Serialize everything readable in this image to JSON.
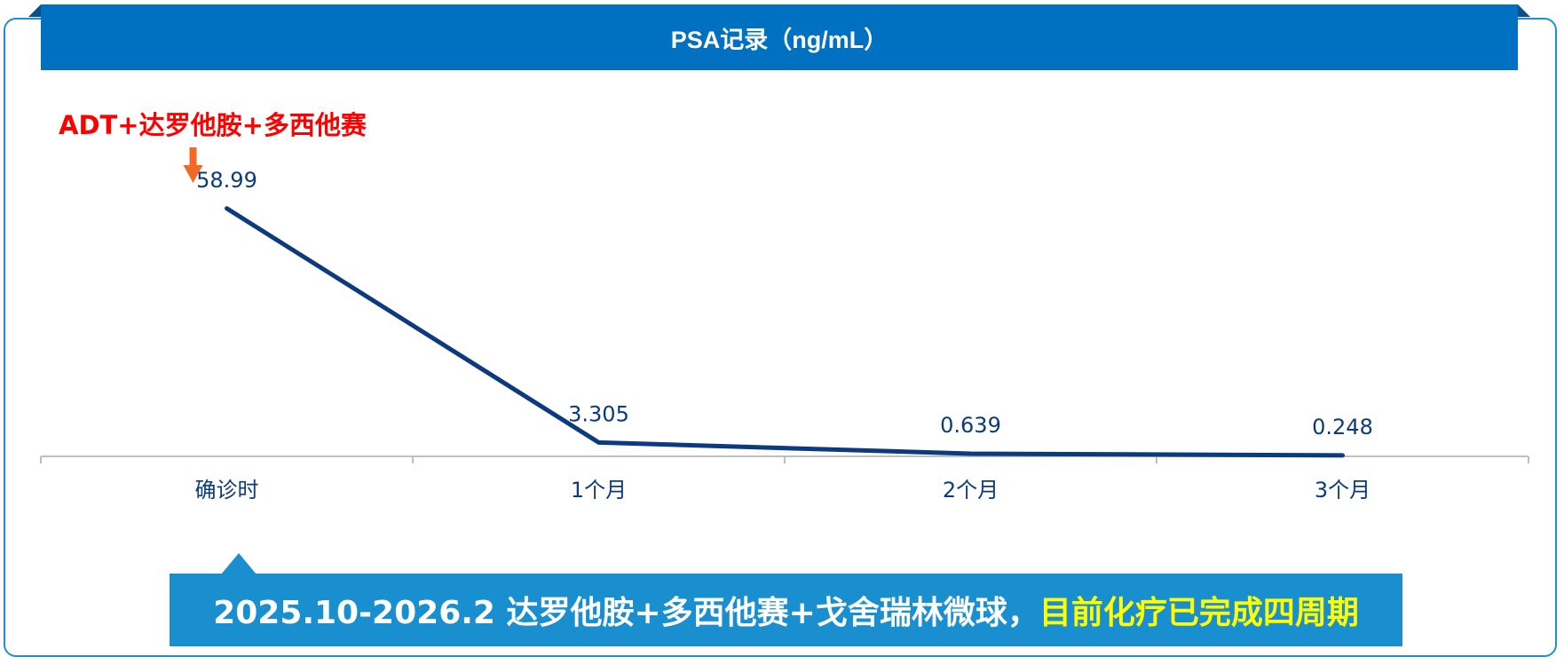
{
  "title": "PSA记录（ng/mL）",
  "annotation": {
    "text": "ADT+达罗他胺+多西他赛",
    "text_color": "#ff0000",
    "arrow_color": "#f06a25"
  },
  "chart_data": {
    "type": "line",
    "categories": [
      "确诊时",
      "1个月",
      "2个月",
      "3个月"
    ],
    "series": [
      {
        "values": [
          58.99,
          3.305,
          0.639,
          0.248
        ],
        "labels": [
          "58.99",
          "3.305",
          "0.639",
          "0.248"
        ]
      }
    ],
    "ylim": [
      0,
      60
    ],
    "grid": false,
    "legend": "none",
    "line_color": "#0b3a7e",
    "label_color": "#0b3a7e",
    "axis_color": "#bfbfbf"
  },
  "banner": {
    "white_text": "2025.10-2026.2 达罗他胺+多西他赛+戈舍瑞林微球，",
    "yellow_text": "目前化疗已完成四周期",
    "background": "#1a8fd0"
  },
  "colors": {
    "title_bar": "#0071c1",
    "frame_border": "#1f8fd1"
  }
}
